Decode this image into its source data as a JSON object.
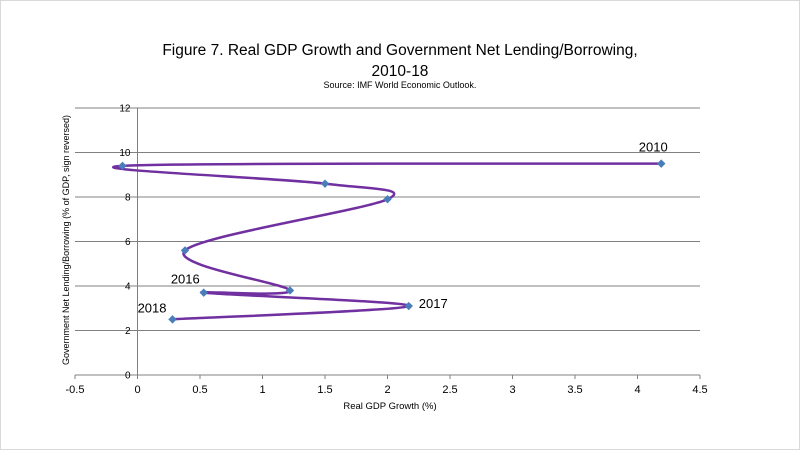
{
  "chart_data": {
    "type": "line",
    "title_line1": "Figure 7. Real GDP Growth and Government Net Lending/Borrowing,",
    "title_line2": "2010-18",
    "source": "Source: IMF World Economic Outlook.",
    "xlabel": "Real GDP Growth (%)",
    "ylabel": "Government Net Lending/Borrowing (% of GDP,  sign reversed)",
    "xlim": [
      -0.5,
      4.5
    ],
    "ylim": [
      0,
      12
    ],
    "xticks": [
      "-0.5",
      "0",
      "0.5",
      "1",
      "1.5",
      "2",
      "2.5",
      "3",
      "3.5",
      "4",
      "4.5"
    ],
    "yticks": [
      "0",
      "2",
      "4",
      "6",
      "8",
      "10",
      "12"
    ],
    "grid": "horizontal",
    "line_color": "#7030a0",
    "marker_color": "#4a7ebb",
    "series": [
      {
        "x": [
          4.19,
          -0.12,
          1.5,
          2.0,
          0.38,
          1.22,
          0.53,
          2.17,
          0.28
        ],
        "y": [
          9.5,
          9.4,
          8.6,
          7.9,
          5.6,
          3.8,
          3.7,
          3.1,
          2.5
        ],
        "point_labels": [
          "2010",
          "",
          "",
          "",
          "",
          "",
          "2016",
          "2017",
          "2018"
        ]
      }
    ]
  }
}
